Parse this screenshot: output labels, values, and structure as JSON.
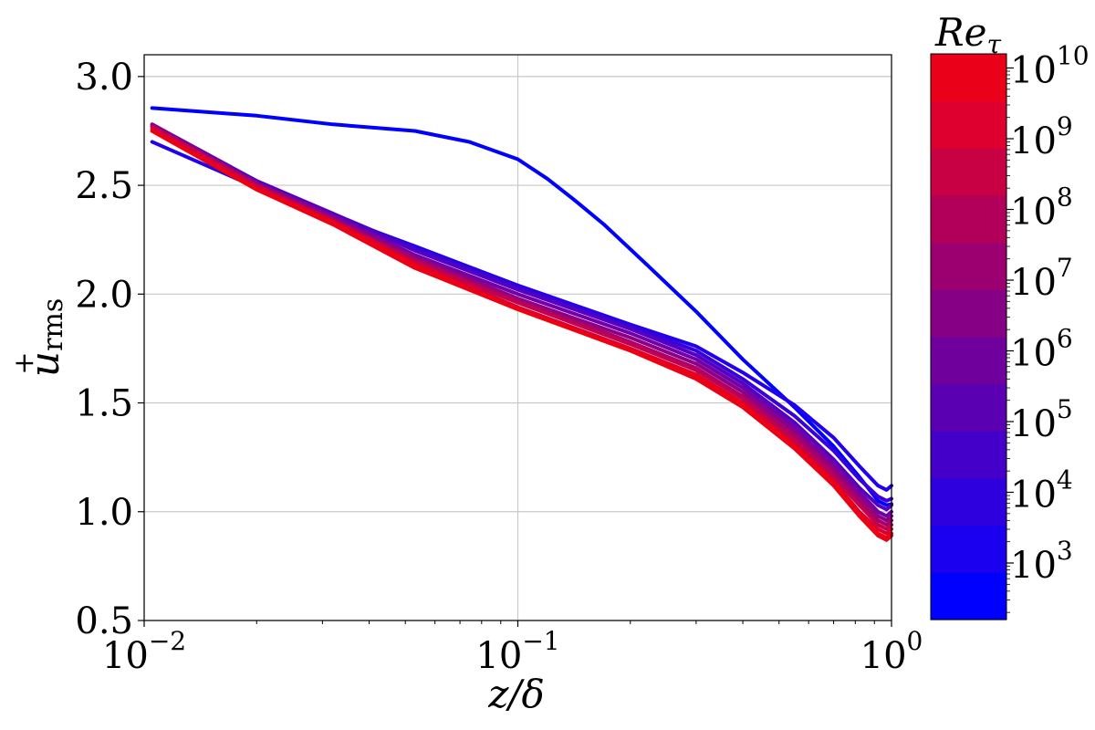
{
  "chart_data": {
    "type": "line",
    "xlabel": "z/δ",
    "ylabel_main": "u",
    "ylabel_sup": "+",
    "ylabel_sub": "rms",
    "xscale": "log",
    "xlim": [
      0.01,
      1
    ],
    "ylim": [
      0.5,
      3.1
    ],
    "grid": true,
    "xticks": [
      {
        "value": 0.01,
        "base": "10",
        "exp": "−2"
      },
      {
        "value": 0.1,
        "base": "10",
        "exp": "−1"
      },
      {
        "value": 1,
        "base": "10",
        "exp": "0"
      }
    ],
    "yticks": [
      {
        "value": 0.5,
        "label": "0.5"
      },
      {
        "value": 1.0,
        "label": "1.0"
      },
      {
        "value": 1.5,
        "label": "1.5"
      },
      {
        "value": 2.0,
        "label": "2.0"
      },
      {
        "value": 2.5,
        "label": "2.5"
      },
      {
        "value": 3.0,
        "label": "3.0"
      }
    ],
    "series": [
      {
        "color": "#0000ff",
        "x": [
          0.0105,
          0.02,
          0.032,
          0.053,
          0.074,
          0.1,
          0.12,
          0.14,
          0.17,
          0.22,
          0.3,
          0.4,
          0.55,
          0.7,
          0.82,
          0.92,
          0.97,
          1.0
        ],
        "y": [
          2.855,
          2.82,
          2.78,
          2.75,
          2.7,
          2.62,
          2.53,
          2.44,
          2.32,
          2.14,
          1.92,
          1.7,
          1.48,
          1.3,
          1.16,
          1.05,
          1.03,
          1.035
        ]
      },
      {
        "color": "#2200ee",
        "x": [
          0.0105,
          0.02,
          0.032,
          0.053,
          0.1,
          0.2,
          0.3,
          0.4,
          0.55,
          0.7,
          0.82,
          0.92,
          0.97,
          1.0
        ],
        "y": [
          2.7,
          2.49,
          2.36,
          2.22,
          2.04,
          1.86,
          1.76,
          1.64,
          1.49,
          1.34,
          1.21,
          1.12,
          1.1,
          1.12
        ]
      },
      {
        "color": "#3a00d8",
        "x": [
          0.0105,
          0.02,
          0.032,
          0.053,
          0.1,
          0.2,
          0.3,
          0.4,
          0.55,
          0.7,
          0.82,
          0.92,
          0.97,
          1.0
        ],
        "y": [
          2.77,
          2.52,
          2.37,
          2.21,
          2.03,
          1.85,
          1.74,
          1.61,
          1.44,
          1.28,
          1.15,
          1.07,
          1.05,
          1.06
        ]
      },
      {
        "color": "#5500c0",
        "x": [
          0.0105,
          0.02,
          0.032,
          0.053,
          0.1,
          0.2,
          0.3,
          0.4,
          0.55,
          0.7,
          0.82,
          0.92,
          0.97,
          1.0
        ],
        "y": [
          2.78,
          2.52,
          2.37,
          2.2,
          2.02,
          1.84,
          1.72,
          1.59,
          1.41,
          1.24,
          1.11,
          1.03,
          1.01,
          1.03
        ]
      },
      {
        "color": "#7200a6",
        "x": [
          0.0105,
          0.02,
          0.032,
          0.053,
          0.1,
          0.2,
          0.3,
          0.4,
          0.55,
          0.7,
          0.82,
          0.92,
          0.97,
          1.0
        ],
        "y": [
          2.78,
          2.51,
          2.36,
          2.18,
          2.0,
          1.82,
          1.7,
          1.57,
          1.39,
          1.22,
          1.09,
          1.0,
          0.98,
          1.0
        ]
      },
      {
        "color": "#8c0088",
        "x": [
          0.0105,
          0.02,
          0.032,
          0.053,
          0.1,
          0.2,
          0.3,
          0.4,
          0.55,
          0.7,
          0.82,
          0.92,
          0.97,
          1.0
        ],
        "y": [
          2.78,
          2.51,
          2.35,
          2.17,
          1.98,
          1.8,
          1.68,
          1.55,
          1.37,
          1.2,
          1.07,
          0.98,
          0.96,
          0.98
        ]
      },
      {
        "color": "#a6006a",
        "x": [
          0.0105,
          0.02,
          0.032,
          0.053,
          0.1,
          0.2,
          0.3,
          0.4,
          0.55,
          0.7,
          0.82,
          0.92,
          0.97,
          1.0
        ],
        "y": [
          2.77,
          2.5,
          2.34,
          2.16,
          1.97,
          1.78,
          1.66,
          1.53,
          1.35,
          1.18,
          1.05,
          0.96,
          0.94,
          0.96
        ]
      },
      {
        "color": "#c00050",
        "x": [
          0.0105,
          0.02,
          0.032,
          0.053,
          0.1,
          0.2,
          0.3,
          0.4,
          0.55,
          0.7,
          0.82,
          0.92,
          0.97,
          1.0
        ],
        "y": [
          2.77,
          2.5,
          2.34,
          2.15,
          1.96,
          1.77,
          1.65,
          1.52,
          1.33,
          1.16,
          1.03,
          0.94,
          0.92,
          0.94
        ]
      },
      {
        "color": "#d60035",
        "x": [
          0.0105,
          0.02,
          0.032,
          0.053,
          0.1,
          0.2,
          0.3,
          0.4,
          0.55,
          0.7,
          0.82,
          0.92,
          0.97,
          1.0
        ],
        "y": [
          2.76,
          2.49,
          2.33,
          2.14,
          1.94,
          1.75,
          1.63,
          1.5,
          1.31,
          1.14,
          1.0,
          0.92,
          0.9,
          0.92
        ]
      },
      {
        "color": "#e8001e",
        "x": [
          0.0105,
          0.02,
          0.032,
          0.053,
          0.1,
          0.2,
          0.3,
          0.4,
          0.55,
          0.7,
          0.82,
          0.92,
          0.97,
          1.0
        ],
        "y": [
          2.75,
          2.48,
          2.32,
          2.12,
          1.93,
          1.74,
          1.61,
          1.48,
          1.29,
          1.12,
          0.98,
          0.89,
          0.87,
          0.89
        ]
      },
      {
        "color": "#ee0010",
        "x": [
          0.0105,
          0.02,
          0.032,
          0.053,
          0.1,
          0.2,
          0.3,
          0.4,
          0.55,
          0.7,
          0.82,
          0.92,
          0.97,
          1.0
        ],
        "y": [
          2.75,
          2.48,
          2.33,
          2.13,
          1.93,
          1.74,
          1.62,
          1.49,
          1.3,
          1.13,
          0.99,
          0.9,
          0.88,
          0.9
        ]
      }
    ],
    "colorbar": {
      "label_main": "Re",
      "label_sub": "τ",
      "range_log10": [
        2.2,
        10.2
      ],
      "band_colors": [
        "#0000ff",
        "#1a00ee",
        "#2e00dd",
        "#4400c8",
        "#5a00b2",
        "#70009c",
        "#860086",
        "#9c0070",
        "#b2005a",
        "#c80044",
        "#de002e",
        "#ea0018"
      ],
      "ticks": [
        {
          "exp_value": 3,
          "base": "10",
          "exp": "3"
        },
        {
          "exp_value": 4,
          "base": "10",
          "exp": "4"
        },
        {
          "exp_value": 5,
          "base": "10",
          "exp": "5"
        },
        {
          "exp_value": 6,
          "base": "10",
          "exp": "6"
        },
        {
          "exp_value": 7,
          "base": "10",
          "exp": "7"
        },
        {
          "exp_value": 8,
          "base": "10",
          "exp": "8"
        },
        {
          "exp_value": 9,
          "base": "10",
          "exp": "9"
        },
        {
          "exp_value": 10,
          "base": "10",
          "exp": "10"
        }
      ]
    }
  }
}
